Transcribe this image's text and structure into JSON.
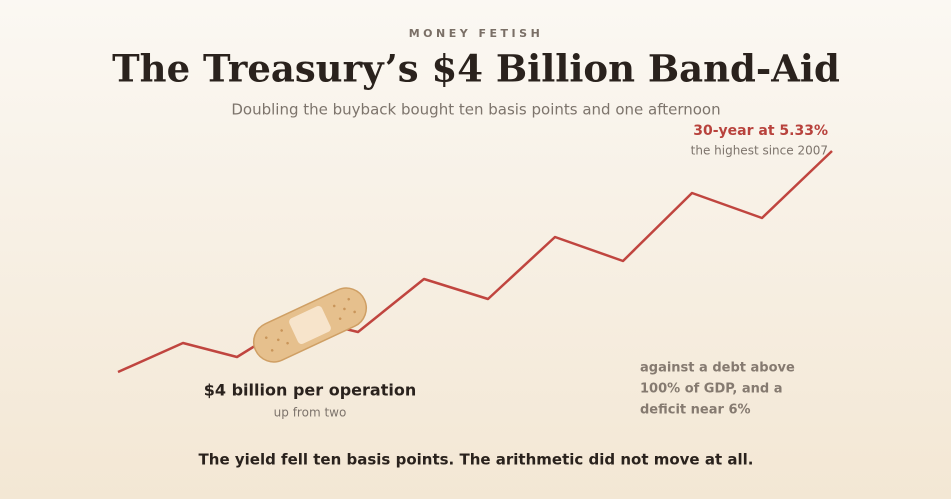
{
  "header": {
    "kicker": "MONEY FETISH",
    "title": "The Treasury’s $4 Billion Band-Aid",
    "subtitle": "Doubling the buyback bought ten basis points and one afternoon"
  },
  "end_label": {
    "title": "30-year at 5.33%",
    "note": "the highest since 2007"
  },
  "bandage_label": {
    "title": "$4 billion per operation",
    "note": "up from two"
  },
  "side_note": {
    "lines": [
      "against a debt above",
      "100% of GDP, and a",
      "deficit near 6%"
    ]
  },
  "footer": "The yield fell ten basis points. The arithmetic did not move at all."
}
